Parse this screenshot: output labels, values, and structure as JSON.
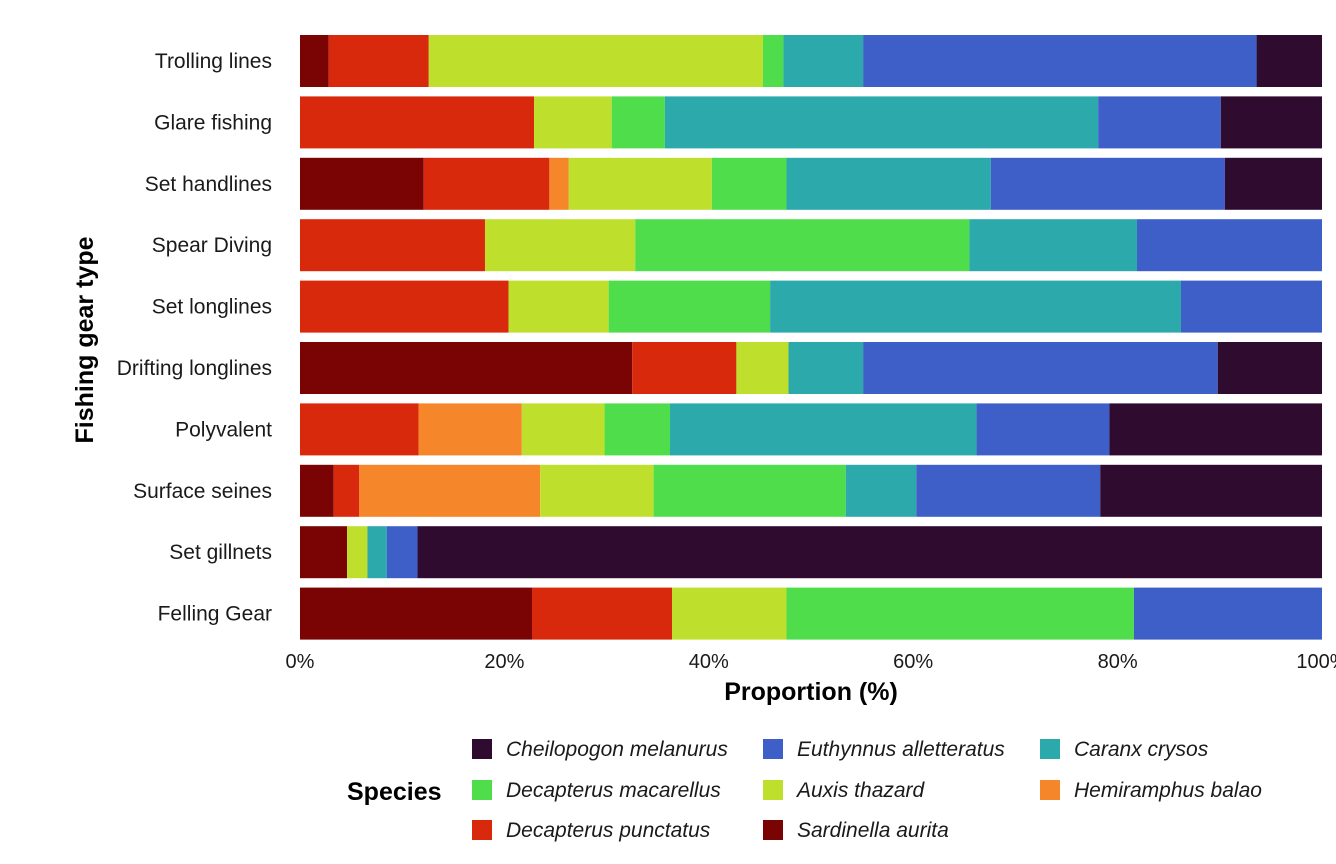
{
  "chart_data": {
    "type": "bar",
    "orientation": "horizontal",
    "stacked": true,
    "xlabel": "Proportion (%)",
    "ylabel": "Fishing gear type",
    "xlim": [
      0,
      100
    ],
    "x_ticks": [
      "0%",
      "20%",
      "40%",
      "60%",
      "80%",
      "100%"
    ],
    "grid": false,
    "legend_title": "Species",
    "legend_position": "bottom",
    "categories": [
      "Trolling lines",
      "Glare fishing",
      "Set handlines",
      "Spear Diving",
      "Set longlines",
      "Drifting longlines",
      "Polyvalent",
      "Surface seines",
      "Set gillnets",
      "Felling Gear"
    ],
    "series": [
      {
        "name": "Sardinella aurita",
        "color": "#7a0403",
        "values": [
          2.8,
          0,
          12.1,
          0,
          0,
          32.5,
          0,
          3.3,
          4.6,
          22.7
        ]
      },
      {
        "name": "Decapterus punctatus",
        "color": "#d9290d",
        "values": [
          9.8,
          22.9,
          12.3,
          18.1,
          20.4,
          10.2,
          11.6,
          2.5,
          0,
          13.7
        ]
      },
      {
        "name": "Hemiramphus balao",
        "color": "#f5862a",
        "values": [
          0,
          0,
          1.9,
          0,
          0,
          0,
          10.1,
          17.7,
          0,
          0
        ]
      },
      {
        "name": "Auxis thazard",
        "color": "#bfdf2d",
        "values": [
          32.7,
          7.6,
          14.0,
          14.7,
          9.8,
          5.1,
          8.1,
          11.1,
          2.0,
          11.2
        ]
      },
      {
        "name": "Decapterus macarellus",
        "color": "#4fdd4c",
        "values": [
          2.0,
          5.2,
          7.3,
          32.7,
          15.8,
          0,
          6.4,
          18.8,
          0,
          34.0
        ]
      },
      {
        "name": "Caranx crysos",
        "color": "#2ba9ab",
        "values": [
          7.8,
          42.4,
          20.0,
          16.4,
          40.2,
          7.3,
          30.0,
          6.9,
          1.9,
          0
        ]
      },
      {
        "name": "Euthynnus alletteratus",
        "color": "#3e5ec8",
        "values": [
          38.5,
          12.0,
          22.9,
          18.1,
          13.8,
          34.7,
          13.0,
          18.0,
          3.0,
          18.4
        ]
      },
      {
        "name": "Cheilopogon melanurus",
        "color": "#2f0b30",
        "values": [
          6.4,
          9.9,
          9.5,
          0,
          0,
          10.2,
          20.8,
          21.7,
          88.5,
          0
        ]
      }
    ],
    "legend_order": [
      "Cheilopogon melanurus",
      "Euthynnus alletteratus",
      "Caranx crysos",
      "Decapterus macarellus",
      "Auxis thazard",
      "Hemiramphus balao",
      "Decapterus punctatus",
      "Sardinella aurita"
    ]
  }
}
